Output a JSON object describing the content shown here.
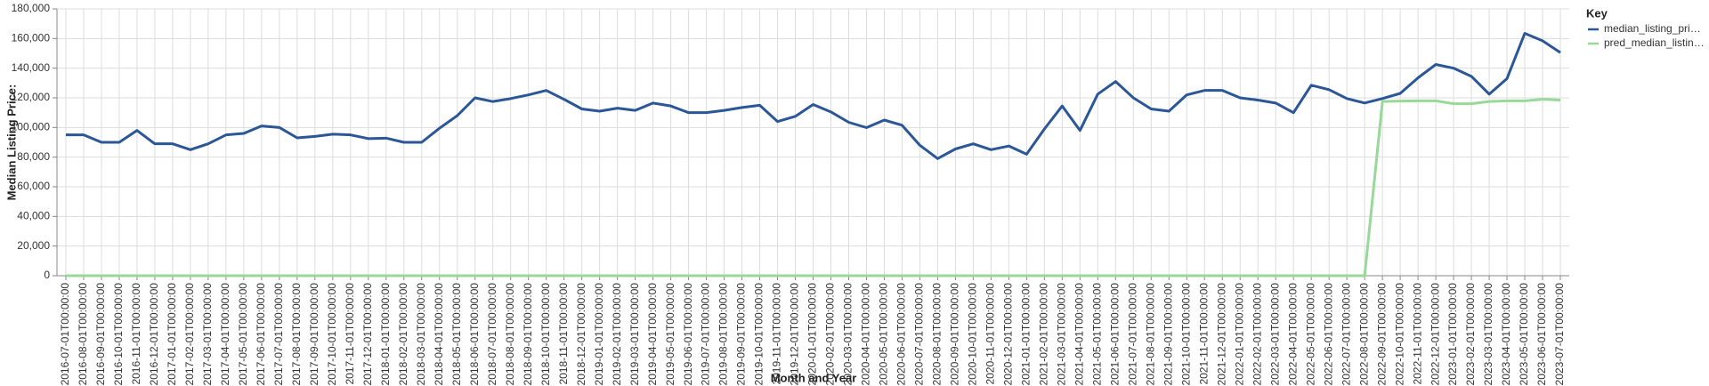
{
  "chart_data": {
    "type": "line",
    "x_label": "Month and Year",
    "y_label": "Median Listing Price:",
    "legend_title": "Key",
    "legend": "right",
    "grid": true,
    "categories": [
      "2016-07-01T00:00:00",
      "2016-08-01T00:00:00",
      "2016-09-01T00:00:00",
      "2016-10-01T00:00:00",
      "2016-11-01T00:00:00",
      "2016-12-01T00:00:00",
      "2017-01-01T00:00:00",
      "2017-02-01T00:00:00",
      "2017-03-01T00:00:00",
      "2017-04-01T00:00:00",
      "2017-05-01T00:00:00",
      "2017-06-01T00:00:00",
      "2017-07-01T00:00:00",
      "2017-08-01T00:00:00",
      "2017-09-01T00:00:00",
      "2017-10-01T00:00:00",
      "2017-11-01T00:00:00",
      "2017-12-01T00:00:00",
      "2018-01-01T00:00:00",
      "2018-02-01T00:00:00",
      "2018-03-01T00:00:00",
      "2018-04-01T00:00:00",
      "2018-05-01T00:00:00",
      "2018-06-01T00:00:00",
      "2018-07-01T00:00:00",
      "2018-08-01T00:00:00",
      "2018-09-01T00:00:00",
      "2018-10-01T00:00:00",
      "2018-11-01T00:00:00",
      "2018-12-01T00:00:00",
      "2019-01-01T00:00:00",
      "2019-02-01T00:00:00",
      "2019-03-01T00:00:00",
      "2019-04-01T00:00:00",
      "2019-05-01T00:00:00",
      "2019-06-01T00:00:00",
      "2019-07-01T00:00:00",
      "2019-08-01T00:00:00",
      "2019-09-01T00:00:00",
      "2019-10-01T00:00:00",
      "2019-11-01T00:00:00",
      "2019-12-01T00:00:00",
      "2020-01-01T00:00:00",
      "2020-02-01T00:00:00",
      "2020-03-01T00:00:00",
      "2020-04-01T00:00:00",
      "2020-05-01T00:00:00",
      "2020-06-01T00:00:00",
      "2020-07-01T00:00:00",
      "2020-08-01T00:00:00",
      "2020-09-01T00:00:00",
      "2020-10-01T00:00:00",
      "2020-11-01T00:00:00",
      "2020-12-01T00:00:00",
      "2021-01-01T00:00:00",
      "2021-02-01T00:00:00",
      "2021-03-01T00:00:00",
      "2021-04-01T00:00:00",
      "2021-05-01T00:00:00",
      "2021-06-01T00:00:00",
      "2021-07-01T00:00:00",
      "2021-08-01T00:00:00",
      "2021-09-01T00:00:00",
      "2021-10-01T00:00:00",
      "2021-11-01T00:00:00",
      "2021-12-01T00:00:00",
      "2022-01-01T00:00:00",
      "2022-02-01T00:00:00",
      "2022-03-01T00:00:00",
      "2022-04-01T00:00:00",
      "2022-05-01T00:00:00",
      "2022-06-01T00:00:00",
      "2022-07-01T00:00:00",
      "2022-08-01T00:00:00",
      "2022-09-01T00:00:00",
      "2022-10-01T00:00:00",
      "2022-11-01T00:00:00",
      "2022-12-01T00:00:00",
      "2023-01-01T00:00:00",
      "2023-02-01T00:00:00",
      "2023-03-01T00:00:00",
      "2023-04-01T00:00:00",
      "2023-05-01T00:00:00",
      "2023-06-01T00:00:00",
      "2023-07-01T00:00:00"
    ],
    "series": [
      {
        "name": "median_listing_pri…",
        "color": "#2b5797",
        "values": [
          95000,
          95000,
          90000,
          90000,
          98000,
          89000,
          89000,
          85000,
          89000,
          95000,
          96000,
          101000,
          100000,
          93000,
          94000,
          95500,
          95000,
          92500,
          92800,
          90000,
          90000,
          99500,
          108000,
          120000,
          117500,
          119500,
          122000,
          125000,
          119000,
          112500,
          111000,
          113000,
          111500,
          116500,
          114500,
          110000,
          110000,
          111500,
          113500,
          115000,
          104000,
          107500,
          115500,
          110500,
          103500,
          99900,
          105000,
          101500,
          88000,
          79000,
          85500,
          89000,
          85000,
          87500,
          82000,
          99000,
          114500,
          98000,
          122500,
          131000,
          120000,
          112500,
          111000,
          122000,
          125000,
          125000,
          120000,
          118500,
          116500,
          110000,
          128500,
          125500,
          119500,
          116500,
          119500,
          123000,
          133500,
          142500,
          140000,
          134500,
          122500,
          133000,
          163500,
          158500,
          150500
        ]
      },
      {
        "name": "pred_median_listin…",
        "color": "#98d99a",
        "values": [
          0,
          0,
          0,
          0,
          0,
          0,
          0,
          0,
          0,
          0,
          0,
          0,
          0,
          0,
          0,
          0,
          0,
          0,
          0,
          0,
          0,
          0,
          0,
          0,
          0,
          0,
          0,
          0,
          0,
          0,
          0,
          0,
          0,
          0,
          0,
          0,
          0,
          0,
          0,
          0,
          0,
          0,
          0,
          0,
          0,
          0,
          0,
          0,
          0,
          0,
          0,
          0,
          0,
          0,
          0,
          0,
          0,
          0,
          0,
          0,
          0,
          0,
          0,
          0,
          0,
          0,
          0,
          0,
          0,
          0,
          0,
          0,
          0,
          0,
          117500,
          117800,
          118000,
          118000,
          116000,
          116000,
          117500,
          118000,
          118000,
          119000,
          118500
        ]
      }
    ],
    "ylim": [
      0,
      180000
    ],
    "yticks": [
      0,
      {
        "value": 20000,
        "label": "20,000"
      },
      {
        "value": 40000,
        "label": "40,000"
      },
      {
        "value": 60000,
        "label": "60,000"
      },
      {
        "value": 80000,
        "label": "80,000"
      },
      {
        "value": 100000,
        "label": "100,000"
      },
      {
        "value": 120000,
        "label": "120,000"
      },
      {
        "value": 140000,
        "label": "140,000"
      },
      {
        "value": 160000,
        "label": "160,000"
      },
      {
        "value": 180000,
        "label": "180,000"
      }
    ]
  }
}
